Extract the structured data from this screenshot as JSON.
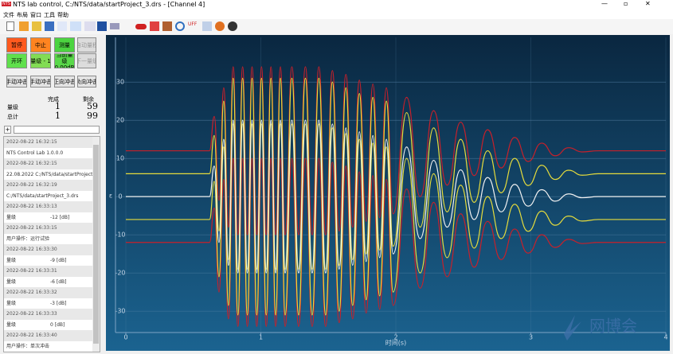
{
  "window": {
    "title": "NTS lab control, C:/NTS/data/startProject_3.drs - [Channel 4]",
    "menu": [
      "文件",
      "布局",
      "窗口",
      "工具",
      "帮助"
    ]
  },
  "controls": {
    "buttons": [
      "暂停",
      "中止",
      "测量",
      "自动量程",
      "开环",
      "量级 - 1",
      "当前量级 0.00dB",
      "下一量级"
    ],
    "shock_buttons": [
      "手动冲击",
      "手动冲击",
      "正向冲击",
      "负向冲击"
    ]
  },
  "stats": {
    "header": [
      "完成",
      "剩余"
    ],
    "rows": [
      {
        "label": "量级",
        "done": 1,
        "remaining": 59
      },
      {
        "label": "总计",
        "done": 1,
        "remaining": 99
      }
    ]
  },
  "log": [
    {
      "time": "2022-08-22 16:32:15",
      "message": "NTS Control Lab 1.0.0.0"
    },
    {
      "time": "2022-08-22 16:32:15",
      "message": "22.08.2022 C:/NTS/data/startProject.drs"
    },
    {
      "time": "2022-08-22 16:32:19",
      "message": "C:/NTS/data/startProject_3.drs"
    },
    {
      "time": "2022-08-22 16:33:13",
      "message": "量级",
      "value": "-12 [dB]"
    },
    {
      "time": "2022-08-22 16:33:15",
      "message": "用户操作：运行试验"
    },
    {
      "time": "2022-08-22 16:33:30",
      "message": "量级",
      "value": "-9 [dB]"
    },
    {
      "time": "2022-08-22 16:33:31",
      "message": "量级",
      "value": "-6 [dB]"
    },
    {
      "time": "2022-08-22 16:33:32",
      "message": "量级",
      "value": "-3 [dB]"
    },
    {
      "time": "2022-08-22 16:33:33",
      "message": "量级",
      "value": "0 [dB]"
    },
    {
      "time": "2022-08-22 16:33:40",
      "message": "用户操作：单次冲击"
    }
  ],
  "watermark": "网博会",
  "chart_data": {
    "type": "line",
    "x_label": "时间(s)",
    "y_label": "ε",
    "xlim": [
      0,
      4
    ],
    "ylim": [
      -35.6,
      41.7
    ],
    "xticks": [
      0,
      1,
      2,
      3,
      4
    ],
    "yticks": [
      -30,
      -20,
      -10,
      0,
      10,
      20,
      30
    ],
    "grid": true,
    "x": [
      0,
      0.62,
      0.655,
      0.69,
      0.725,
      0.76,
      0.795,
      0.83,
      0.865,
      0.9,
      0.935,
      0.97,
      1.005,
      1.04,
      1.075,
      1.11,
      1.145,
      1.18,
      1.23,
      1.28,
      1.33,
      1.38,
      1.43,
      1.48,
      1.53,
      1.58,
      1.63,
      1.68,
      1.73,
      1.78,
      1.83,
      1.88,
      1.93,
      1.98,
      2.08,
      2.18,
      2.28,
      2.38,
      2.48,
      2.58,
      2.68,
      2.78,
      2.88,
      2.98,
      3.08,
      3.18,
      3.28,
      3.38,
      3.5,
      4
    ],
    "series": [
      {
        "color": "#c8202a",
        "values": [
          12,
          12,
          21,
          -1,
          28.5,
          -8,
          34,
          -10,
          34,
          -10,
          34,
          -10,
          34,
          -10,
          34,
          -10,
          34,
          -10,
          34,
          -10,
          34,
          -10,
          34,
          -10,
          33,
          -9,
          32,
          -8,
          30.5,
          -6.5,
          29.5,
          -5.5,
          28.5,
          -4.5,
          26,
          0,
          22.5,
          3,
          19.5,
          5.5,
          17.5,
          7.5,
          15.5,
          9.2,
          14,
          10.7,
          12.8,
          11.7,
          12,
          12
        ]
      },
      {
        "color": "#c8202a",
        "values": [
          -12,
          -12,
          -3,
          -25,
          4.5,
          -32,
          10,
          -34,
          10,
          -34,
          10,
          -34,
          10,
          -34,
          10,
          -34,
          10,
          -34,
          10,
          -34,
          10,
          -34,
          10,
          -34,
          9,
          -33,
          8,
          -32,
          6.5,
          -30.5,
          5.5,
          -29.5,
          4.5,
          -28.5,
          2,
          -24,
          -1.5,
          -21,
          -4.5,
          -18.5,
          -6.5,
          -16.5,
          -8.5,
          -14.8,
          -10,
          -13.3,
          -11.2,
          -12.3,
          -12,
          -12
        ]
      },
      {
        "color": "#e6dc3c",
        "values": [
          6,
          6,
          16,
          -9,
          25,
          -16.5,
          31,
          -19,
          31,
          -19,
          31,
          -19,
          31,
          -19,
          31,
          -19,
          31,
          -19,
          31,
          -19,
          31,
          -19,
          31,
          -19,
          30,
          -18,
          28.5,
          -16.5,
          27,
          -15,
          26,
          -14,
          25,
          -13,
          22,
          -8,
          18,
          -4,
          15,
          -1.5,
          12,
          1,
          10,
          2.9,
          8.2,
          4.5,
          6.9,
          5.6,
          6,
          6
        ]
      },
      {
        "color": "#e6dc3c",
        "values": [
          -6,
          -6,
          4,
          -21,
          13,
          -28.5,
          19,
          -31,
          19,
          -31,
          19,
          -31,
          19,
          -31,
          19,
          -31,
          19,
          -31,
          19,
          -31,
          19,
          -31,
          19,
          -31,
          18,
          -30,
          16.5,
          -28.5,
          15,
          -27,
          14,
          -26,
          13,
          -25,
          10,
          -20,
          6,
          -16,
          3,
          -13.5,
          0,
          -11,
          -2,
          -9.1,
          -3.8,
          -7.5,
          -5.1,
          -6.4,
          -6,
          -6
        ]
      },
      {
        "color": "#f2f2f2",
        "values": [
          0,
          0,
          8,
          -12,
          15,
          -18,
          20,
          -20,
          20,
          -20,
          20,
          -20,
          20,
          -20,
          20,
          -20,
          20,
          -20,
          20,
          -20,
          20,
          -20,
          20,
          -20,
          19,
          -19,
          18,
          -18,
          17,
          -17,
          16,
          -16,
          15,
          -15,
          13,
          -11,
          9.5,
          -8,
          7,
          -6,
          5,
          -4,
          3.2,
          -2.5,
          1.8,
          -1.2,
          0.7,
          -0.3,
          0,
          0
        ]
      }
    ]
  }
}
